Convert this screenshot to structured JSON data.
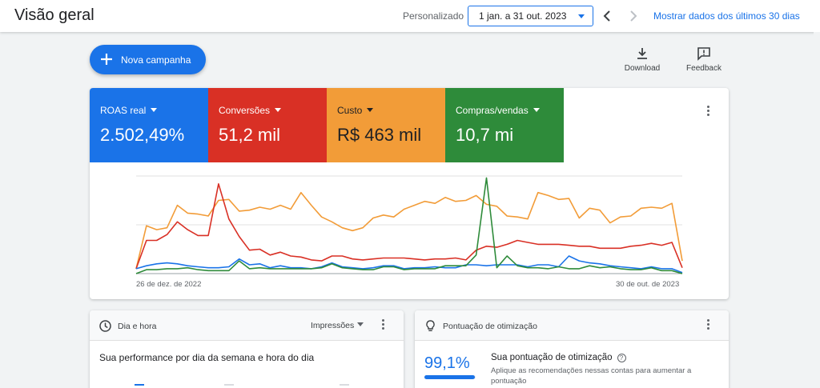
{
  "header": {
    "title": "Visão geral",
    "range_mode": "Personalizado",
    "date_range": "1 jan. a 31 out. 2023",
    "show_last": "Mostrar dados dos últimos 30 dias"
  },
  "actions": {
    "new_campaign": "Nova campanha",
    "download": "Download",
    "feedback": "Feedback"
  },
  "metrics": [
    {
      "label": "ROAS real",
      "value": "2.502,49%",
      "color": "#1a73e8"
    },
    {
      "label": "Conversões",
      "value": "51,2 mil",
      "color": "#d93025"
    },
    {
      "label": "Custo",
      "value": "R$ 463 mil",
      "color": "#f29c38"
    },
    {
      "label": "Compras/vendas",
      "value": "10,7 mi",
      "color": "#2e8b3a"
    }
  ],
  "chart_data": {
    "type": "line",
    "x_start_label": "26 de dez. de 2022",
    "x_end_label": "30 de out. de 2023",
    "grid": true,
    "ylim": [
      0,
      100
    ],
    "series": [
      {
        "name": "Custo",
        "color": "#f29c38",
        "values": [
          5,
          49,
          45,
          47,
          70,
          62,
          61,
          59,
          75,
          76,
          64,
          65,
          68,
          66,
          70,
          66,
          83,
          70,
          58,
          53,
          47,
          44,
          47,
          57,
          60,
          58,
          66,
          70,
          74,
          72,
          78,
          74,
          75,
          80,
          71,
          69,
          59,
          58,
          56,
          83,
          80,
          76,
          77,
          57,
          67,
          65,
          52,
          58,
          59,
          67,
          68,
          67,
          72,
          13
        ]
      },
      {
        "name": "Conversões",
        "color": "#d93025",
        "values": [
          5,
          34,
          34,
          40,
          53,
          45,
          39,
          39,
          92,
          56,
          38,
          24,
          25,
          19,
          22,
          18,
          17,
          14,
          13,
          18,
          18,
          15,
          14,
          15,
          16,
          16,
          16,
          15,
          14,
          15,
          15,
          16,
          14,
          24,
          28,
          27,
          30,
          34,
          32,
          30,
          30,
          30,
          29,
          28,
          28,
          26,
          26,
          26,
          28,
          29,
          31,
          29,
          32,
          6
        ]
      },
      {
        "name": "ROAS real",
        "color": "#1a73e8",
        "values": [
          5,
          8,
          10,
          11,
          10,
          8,
          7,
          6,
          6,
          7,
          15,
          9,
          10,
          6,
          8,
          6,
          6,
          5,
          7,
          11,
          7,
          6,
          5,
          6,
          8,
          8,
          5,
          6,
          6,
          7,
          6,
          6,
          9,
          9,
          8,
          9,
          9,
          9,
          7,
          9,
          9,
          7,
          18,
          13,
          11,
          10,
          8,
          7,
          6,
          5,
          7,
          5,
          5,
          1
        ]
      },
      {
        "name": "Compras/vendas",
        "color": "#2e8b3a",
        "values": [
          0,
          4,
          4,
          5,
          5,
          6,
          4,
          3,
          3,
          3,
          13,
          5,
          6,
          5,
          5,
          5,
          5,
          5,
          6,
          10,
          6,
          5,
          4,
          4,
          7,
          7,
          4,
          5,
          5,
          5,
          8,
          8,
          8,
          19,
          98,
          6,
          18,
          8,
          6,
          6,
          5,
          7,
          5,
          5,
          8,
          6,
          7,
          5,
          4,
          4,
          6,
          3,
          3,
          0
        ]
      }
    ]
  },
  "day_hour": {
    "title": "Dia e hora",
    "metric_select": "Impressões",
    "subtitle": "Sua performance por dia da semana e hora do dia"
  },
  "optimization": {
    "title": "Pontuação de otimização",
    "score": "99,1%",
    "score_fraction": 0.991,
    "heading": "Sua pontuação de otimização",
    "description": "Aplique as recomendações nessas contas para aumentar a pontuação"
  }
}
